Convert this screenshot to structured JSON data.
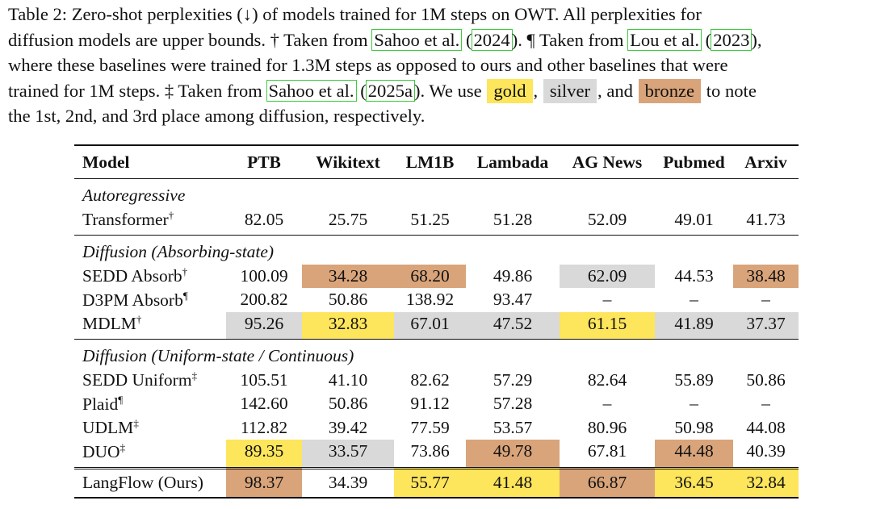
{
  "caption": {
    "l1": "Table 2: Zero-shot perplexities (↓) of models trained for 1M steps on OWT. All perplexities for",
    "l2a": "diffusion models are upper bounds. † Taken from ",
    "l2_ref1": "Sahoo et al.",
    "l2b": " (",
    "l2_ref1y": "2024",
    "l2c": "). ¶ Taken from ",
    "l2_ref2": "Lou et al.",
    "l2d": " (",
    "l2_ref2y": "2023",
    "l2e": "),",
    "l3": "where these baselines were trained for 1.3M steps as opposed to ours and other baselines that were",
    "l4a": "trained for 1M steps. ‡ Taken from ",
    "l4_ref": "Sahoo et al.",
    "l4b": " (",
    "l4_refy": "2025a",
    "l4c": "). We use ",
    "gold": "gold",
    "comma1": ", ",
    "silver": "silver",
    "comma2": ", and ",
    "bronze": "bronze",
    "l4d": " to note",
    "l5": "the 1st, 2nd, and 3rd place among diffusion, respectively."
  },
  "colors": {
    "gold": "#fde55c",
    "silver": "#d9d9d9",
    "bronze": "#d9a47a",
    "ref_box": "#3bcc3b"
  },
  "table": {
    "headers": [
      "Model",
      "PTB",
      "Wikitext",
      "LM1B",
      "Lambada",
      "AG News",
      "Pubmed",
      "Arxiv"
    ],
    "groups": [
      {
        "title": "Autoregressive",
        "rows": [
          {
            "model": "Transformer",
            "mark": "†",
            "values": [
              "82.05",
              "25.75",
              "51.25",
              "51.28",
              "52.09",
              "49.01",
              "41.73"
            ],
            "ranks": [
              "",
              "",
              "",
              "",
              "",
              "",
              ""
            ]
          }
        ]
      },
      {
        "title": "Diffusion (Absorbing-state)",
        "rows": [
          {
            "model": "SEDD Absorb",
            "mark": "†",
            "values": [
              "100.09",
              "34.28",
              "68.20",
              "49.86",
              "62.09",
              "44.53",
              "38.48"
            ],
            "ranks": [
              "",
              "bronze",
              "bronze",
              "",
              "silver",
              "",
              "bronze"
            ]
          },
          {
            "model": "D3PM Absorb",
            "mark": "¶",
            "values": [
              "200.82",
              "50.86",
              "138.92",
              "93.47",
              "–",
              "–",
              "–"
            ],
            "ranks": [
              "",
              "",
              "",
              "",
              "",
              "",
              ""
            ]
          },
          {
            "model": "MDLM",
            "mark": "†",
            "values": [
              "95.26",
              "32.83",
              "67.01",
              "47.52",
              "61.15",
              "41.89",
              "37.37"
            ],
            "ranks": [
              "silver",
              "gold",
              "silver",
              "silver",
              "gold",
              "silver",
              "silver"
            ]
          }
        ]
      },
      {
        "title": "Diffusion (Uniform-state / Continuous)",
        "rows": [
          {
            "model": "SEDD Uniform",
            "mark": "‡",
            "values": [
              "105.51",
              "41.10",
              "82.62",
              "57.29",
              "82.64",
              "55.89",
              "50.86"
            ],
            "ranks": [
              "",
              "",
              "",
              "",
              "",
              "",
              ""
            ]
          },
          {
            "model": "Plaid",
            "mark": "¶",
            "values": [
              "142.60",
              "50.86",
              "91.12",
              "57.28",
              "–",
              "–",
              "–"
            ],
            "ranks": [
              "",
              "",
              "",
              "",
              "",
              "",
              ""
            ]
          },
          {
            "model": "UDLM",
            "mark": "‡",
            "values": [
              "112.82",
              "39.42",
              "77.59",
              "53.57",
              "80.96",
              "50.98",
              "44.08"
            ],
            "ranks": [
              "",
              "",
              "",
              "",
              "",
              "",
              ""
            ]
          },
          {
            "model": "DUO",
            "mark": "‡",
            "values": [
              "89.35",
              "33.57",
              "73.86",
              "49.78",
              "67.81",
              "44.48",
              "40.39"
            ],
            "ranks": [
              "gold",
              "silver",
              "",
              "bronze",
              "",
              "bronze",
              ""
            ]
          }
        ]
      }
    ],
    "ours": {
      "model": "LangFlow (Ours)",
      "mark": "",
      "values": [
        "98.37",
        "34.39",
        "55.77",
        "41.48",
        "66.87",
        "36.45",
        "32.84"
      ],
      "ranks": [
        "bronze",
        "",
        "gold",
        "gold",
        "bronze",
        "gold",
        "gold"
      ]
    }
  }
}
